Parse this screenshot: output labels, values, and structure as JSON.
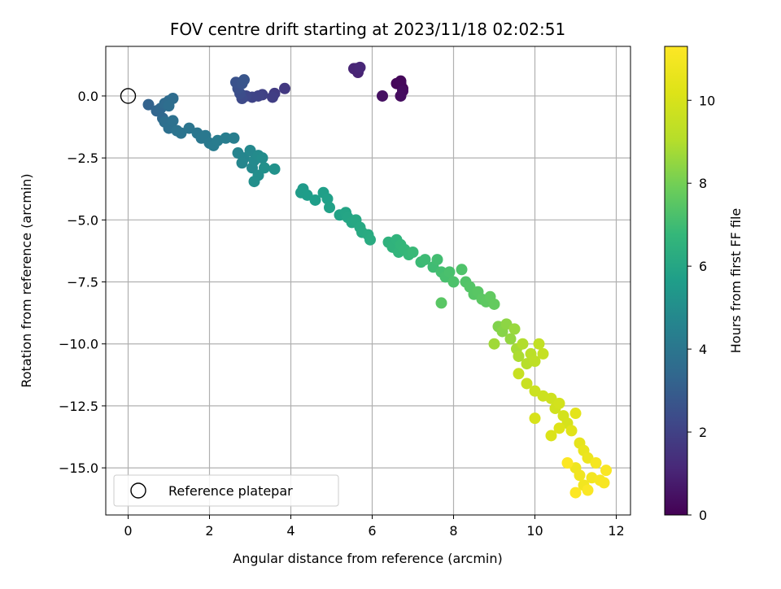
{
  "chart_data": {
    "type": "scatter",
    "title": "FOV centre drift starting at 2023/11/18 02:02:51",
    "xlabel": "Angular distance from reference (arcmin)",
    "ylabel": "Rotation from reference (arcmin)",
    "xlim": [
      -0.55,
      12.35
    ],
    "ylim": [
      -16.9,
      2.0
    ],
    "xticks": [
      "0",
      "2",
      "4",
      "6",
      "8",
      "10",
      "12"
    ],
    "yticks": [
      "0.0",
      "−2.5",
      "−5.0",
      "−7.5",
      "−10.0",
      "−12.5",
      "−15.0"
    ],
    "grid": true,
    "legend": {
      "placement": "lower-left",
      "entries": [
        "Reference platepar"
      ]
    },
    "colorbar": {
      "label": "Hours from first FF file",
      "range": [
        0,
        11.3
      ],
      "ticks": [
        "0",
        "2",
        "4",
        "6",
        "8",
        "10"
      ],
      "colormap": "viridis"
    },
    "reference_point": {
      "x": 0.0,
      "y": 0.0
    },
    "series": [
      {
        "values_format": "[angular distance arcmin, rotation arcmin, hours from first FF file]",
        "points": [
          [
            6.7,
            0.5,
            0.05
          ],
          [
            6.75,
            0.3,
            0.1
          ],
          [
            6.6,
            0.5,
            0.15
          ],
          [
            6.7,
            0.6,
            0.2
          ],
          [
            6.75,
            0.2,
            0.3
          ],
          [
            6.7,
            0.0,
            0.35
          ],
          [
            6.25,
            0.0,
            0.45
          ],
          [
            5.6,
            1.1,
            0.9
          ],
          [
            5.65,
            0.95,
            1.0
          ],
          [
            5.55,
            1.1,
            1.05
          ],
          [
            5.7,
            1.15,
            1.1
          ],
          [
            3.85,
            0.3,
            1.7
          ],
          [
            3.6,
            0.1,
            1.8
          ],
          [
            3.55,
            -0.05,
            1.9
          ],
          [
            3.3,
            0.05,
            2.0
          ],
          [
            3.2,
            0.0,
            2.05
          ],
          [
            3.05,
            -0.05,
            2.1
          ],
          [
            2.9,
            0.0,
            2.2
          ],
          [
            2.8,
            -0.1,
            2.3
          ],
          [
            2.75,
            0.1,
            2.4
          ],
          [
            2.7,
            0.3,
            2.5
          ],
          [
            2.65,
            0.55,
            2.6
          ],
          [
            2.8,
            0.5,
            2.65
          ],
          [
            2.85,
            0.65,
            2.7
          ],
          [
            0.5,
            -0.35,
            3.2
          ],
          [
            0.7,
            -0.6,
            3.3
          ],
          [
            0.8,
            -0.5,
            3.4
          ],
          [
            0.85,
            -0.9,
            3.45
          ],
          [
            0.9,
            -0.3,
            3.5
          ],
          [
            1.0,
            -0.2,
            3.55
          ],
          [
            1.1,
            -0.1,
            3.6
          ],
          [
            1.0,
            -0.4,
            3.65
          ],
          [
            0.9,
            -1.05,
            3.7
          ],
          [
            1.0,
            -1.3,
            3.75
          ],
          [
            1.1,
            -1.0,
            3.8
          ],
          [
            1.2,
            -1.4,
            3.85
          ],
          [
            1.3,
            -1.5,
            3.9
          ],
          [
            1.5,
            -1.3,
            3.95
          ],
          [
            1.7,
            -1.5,
            4.0
          ],
          [
            1.8,
            -1.7,
            4.05
          ],
          [
            1.9,
            -1.6,
            4.1
          ],
          [
            2.0,
            -1.9,
            4.15
          ],
          [
            2.1,
            -2.0,
            4.2
          ],
          [
            2.2,
            -1.8,
            4.25
          ],
          [
            2.4,
            -1.7,
            4.3
          ],
          [
            2.6,
            -1.7,
            4.35
          ],
          [
            2.7,
            -2.3,
            4.6
          ],
          [
            2.85,
            -2.5,
            4.65
          ],
          [
            2.8,
            -2.7,
            4.7
          ],
          [
            3.0,
            -2.2,
            4.75
          ],
          [
            3.05,
            -2.9,
            4.8
          ],
          [
            3.1,
            -2.6,
            4.85
          ],
          [
            3.2,
            -2.4,
            4.9
          ],
          [
            3.3,
            -2.5,
            4.95
          ],
          [
            3.2,
            -3.2,
            5.0
          ],
          [
            3.1,
            -3.45,
            5.05
          ],
          [
            3.35,
            -2.9,
            5.1
          ],
          [
            3.6,
            -2.95,
            5.15
          ],
          [
            4.3,
            -3.75,
            5.5
          ],
          [
            4.25,
            -3.9,
            5.55
          ],
          [
            4.4,
            -4.0,
            5.6
          ],
          [
            4.6,
            -4.2,
            5.65
          ],
          [
            4.8,
            -3.9,
            5.7
          ],
          [
            4.9,
            -4.15,
            5.75
          ],
          [
            4.95,
            -4.5,
            5.8
          ],
          [
            5.2,
            -4.8,
            5.85
          ],
          [
            5.35,
            -4.7,
            5.9
          ],
          [
            5.4,
            -4.9,
            5.95
          ],
          [
            5.5,
            -5.1,
            6.0
          ],
          [
            5.6,
            -5.0,
            6.05
          ],
          [
            5.7,
            -5.3,
            6.1
          ],
          [
            5.75,
            -5.5,
            6.15
          ],
          [
            5.9,
            -5.6,
            6.2
          ],
          [
            5.95,
            -5.8,
            6.25
          ],
          [
            6.4,
            -5.9,
            6.5
          ],
          [
            6.5,
            -6.1,
            6.55
          ],
          [
            6.6,
            -5.8,
            6.6
          ],
          [
            6.65,
            -6.3,
            6.65
          ],
          [
            6.7,
            -6.0,
            6.7
          ],
          [
            6.8,
            -6.2,
            6.75
          ],
          [
            6.9,
            -6.4,
            6.8
          ],
          [
            7.0,
            -6.3,
            6.85
          ],
          [
            7.2,
            -6.7,
            6.9
          ],
          [
            7.3,
            -6.6,
            6.95
          ],
          [
            7.5,
            -6.9,
            7.0
          ],
          [
            7.6,
            -6.6,
            7.05
          ],
          [
            7.7,
            -7.1,
            7.1
          ],
          [
            7.8,
            -7.3,
            7.15
          ],
          [
            7.9,
            -7.1,
            7.2
          ],
          [
            8.0,
            -7.5,
            7.25
          ],
          [
            8.2,
            -7.0,
            7.3
          ],
          [
            8.3,
            -7.5,
            7.35
          ],
          [
            8.4,
            -7.7,
            7.4
          ],
          [
            8.5,
            -8.0,
            7.45
          ],
          [
            8.6,
            -7.9,
            7.5
          ],
          [
            7.7,
            -8.35,
            7.5
          ],
          [
            8.7,
            -8.2,
            7.55
          ],
          [
            8.8,
            -8.3,
            7.6
          ],
          [
            8.9,
            -8.1,
            7.65
          ],
          [
            9.0,
            -8.4,
            7.7
          ],
          [
            9.1,
            -9.3,
            8.2
          ],
          [
            9.2,
            -9.5,
            8.3
          ],
          [
            9.3,
            -9.2,
            8.4
          ],
          [
            9.4,
            -9.8,
            8.5
          ],
          [
            9.5,
            -9.4,
            8.6
          ],
          [
            9.0,
            -10.0,
            8.7
          ],
          [
            9.55,
            -10.2,
            8.8
          ],
          [
            9.6,
            -10.5,
            8.9
          ],
          [
            9.7,
            -10.0,
            9.0
          ],
          [
            9.8,
            -10.8,
            9.1
          ],
          [
            9.9,
            -10.4,
            9.2
          ],
          [
            10.0,
            -10.7,
            9.3
          ],
          [
            10.1,
            -10.0,
            9.4
          ],
          [
            10.2,
            -10.4,
            9.5
          ],
          [
            9.6,
            -11.2,
            9.55
          ],
          [
            9.8,
            -11.6,
            9.6
          ],
          [
            10.0,
            -11.9,
            9.65
          ],
          [
            10.2,
            -12.1,
            9.7
          ],
          [
            10.4,
            -12.2,
            9.75
          ],
          [
            10.5,
            -12.6,
            9.8
          ],
          [
            10.6,
            -12.4,
            9.85
          ],
          [
            10.7,
            -12.9,
            9.9
          ],
          [
            10.8,
            -13.2,
            9.95
          ],
          [
            10.0,
            -13.0,
            10.0
          ],
          [
            10.4,
            -13.7,
            10.1
          ],
          [
            10.6,
            -13.4,
            10.2
          ],
          [
            10.9,
            -13.5,
            10.3
          ],
          [
            11.0,
            -12.8,
            10.4
          ],
          [
            11.1,
            -14.0,
            10.5
          ],
          [
            11.2,
            -14.3,
            10.6
          ],
          [
            11.3,
            -14.6,
            10.7
          ],
          [
            11.0,
            -15.0,
            10.8
          ],
          [
            11.1,
            -15.3,
            10.85
          ],
          [
            11.2,
            -15.7,
            10.9
          ],
          [
            11.4,
            -15.4,
            10.95
          ],
          [
            11.5,
            -14.8,
            11.0
          ],
          [
            11.6,
            -15.5,
            11.05
          ],
          [
            11.7,
            -15.6,
            11.1
          ],
          [
            11.75,
            -15.1,
            11.15
          ],
          [
            11.3,
            -15.9,
            11.2
          ],
          [
            11.0,
            -16.0,
            11.25
          ],
          [
            10.8,
            -14.8,
            11.25
          ]
        ]
      }
    ]
  }
}
